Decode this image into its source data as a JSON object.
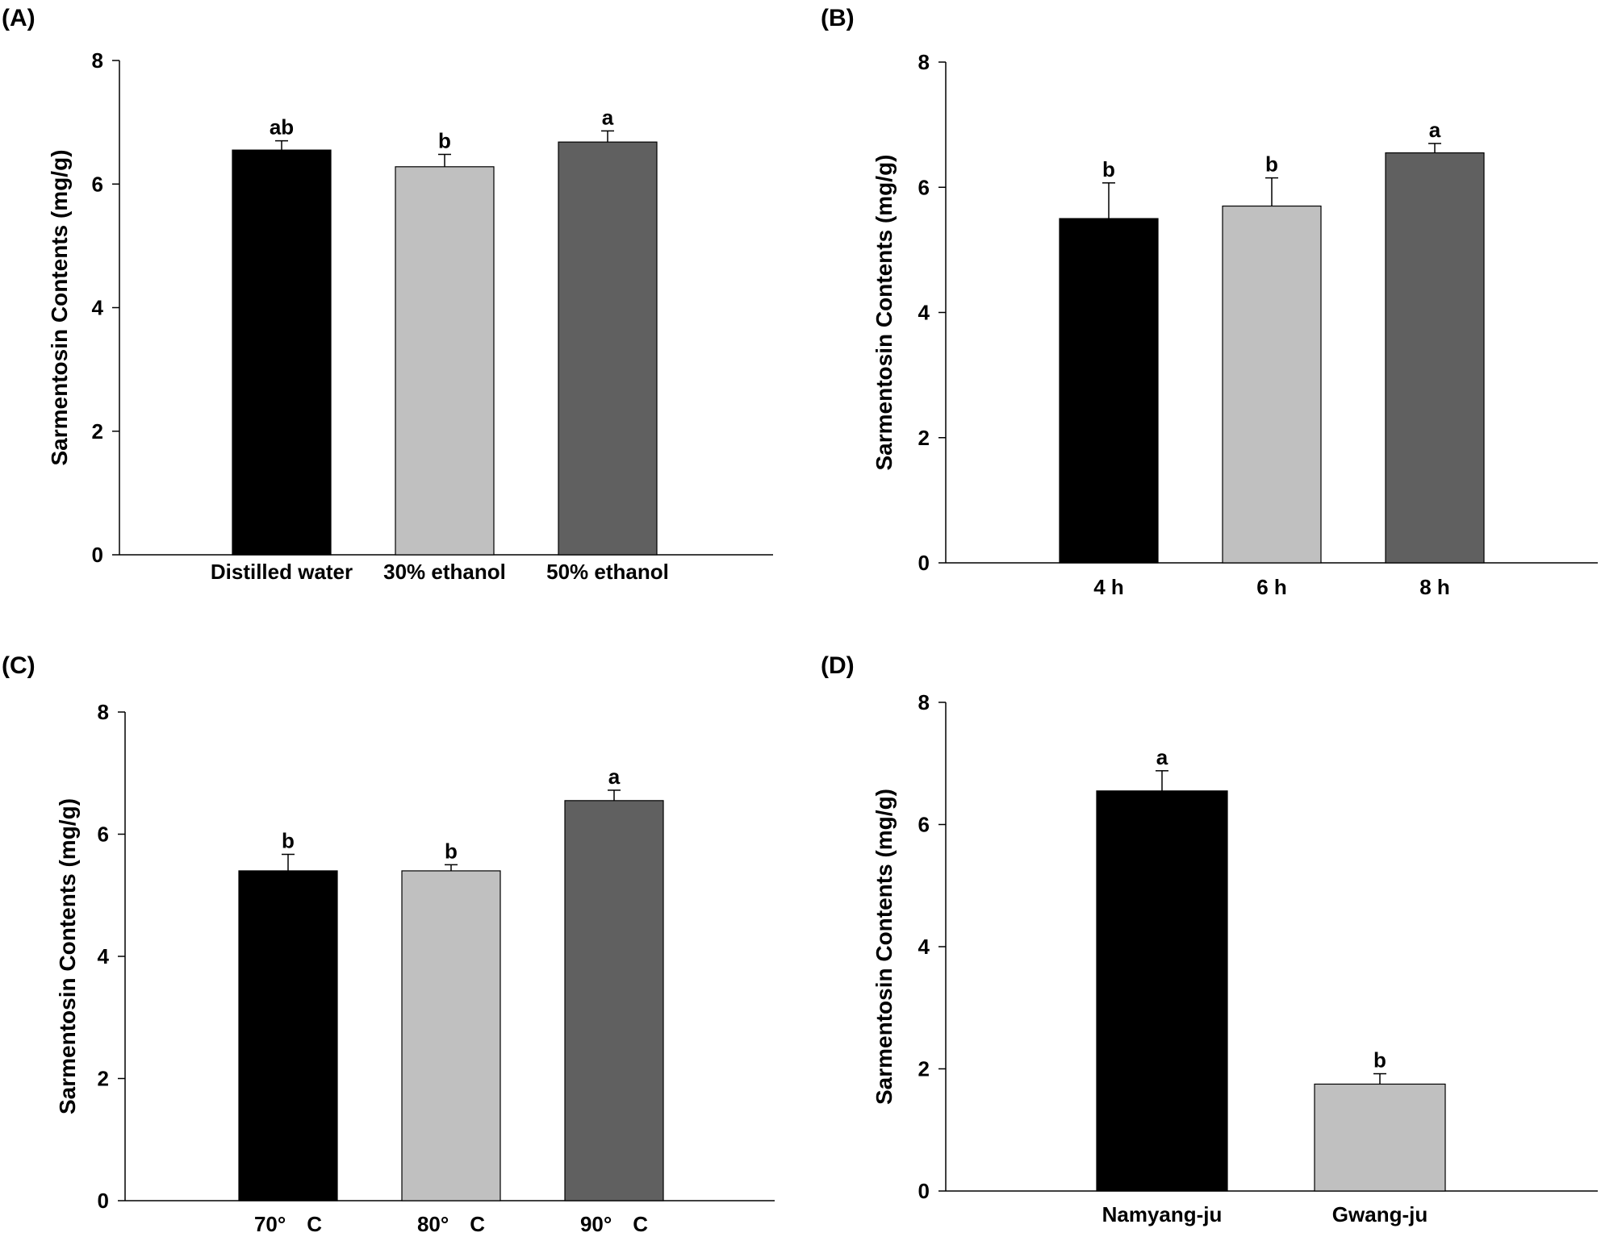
{
  "chart_data": [
    {
      "type": "bar",
      "panel_label": "(A)",
      "ylabel": "Sarmentosin Contents (mg/g)",
      "ylim": [
        0,
        8
      ],
      "yticks": [
        0,
        2,
        4,
        6,
        8
      ],
      "categories": [
        "Distilled water",
        "30% ethanol",
        "50% ethanol"
      ],
      "values": [
        6.55,
        6.28,
        6.68
      ],
      "errors": [
        0.15,
        0.2,
        0.18
      ],
      "letters": [
        "ab",
        "b",
        "a"
      ],
      "colors": [
        "#000000",
        "#c0c0c0",
        "#606060"
      ]
    },
    {
      "type": "bar",
      "panel_label": "(B)",
      "ylabel": "Sarmentosin Contents (mg/g)",
      "ylim": [
        0,
        8
      ],
      "yticks": [
        0,
        2,
        4,
        6,
        8
      ],
      "categories": [
        "4 h",
        "6 h",
        "8 h"
      ],
      "values": [
        5.5,
        5.7,
        6.55
      ],
      "errors": [
        0.57,
        0.45,
        0.15
      ],
      "letters": [
        "b",
        "b",
        "a"
      ],
      "colors": [
        "#000000",
        "#c0c0c0",
        "#606060"
      ]
    },
    {
      "type": "bar",
      "panel_label": "(C)",
      "ylabel": "Sarmentosin Contents (mg/g)",
      "ylim": [
        0,
        8
      ],
      "yticks": [
        0,
        2,
        4,
        6,
        8
      ],
      "categories": [
        "70°　C",
        "80°　C",
        "90°　C"
      ],
      "values": [
        5.4,
        5.4,
        6.55
      ],
      "errors": [
        0.27,
        0.1,
        0.17
      ],
      "letters": [
        "b",
        "b",
        "a"
      ],
      "colors": [
        "#000000",
        "#c0c0c0",
        "#606060"
      ]
    },
    {
      "type": "bar",
      "panel_label": "(D)",
      "ylabel": "Sarmentosin Contents (mg/g)",
      "ylim": [
        0,
        8
      ],
      "yticks": [
        0,
        2,
        4,
        6,
        8
      ],
      "categories": [
        "Namyang-ju",
        "Gwang-ju"
      ],
      "values": [
        6.55,
        1.75
      ],
      "errors": [
        0.33,
        0.17
      ],
      "letters": [
        "a",
        "b"
      ],
      "colors": [
        "#000000",
        "#c0c0c0"
      ]
    }
  ]
}
